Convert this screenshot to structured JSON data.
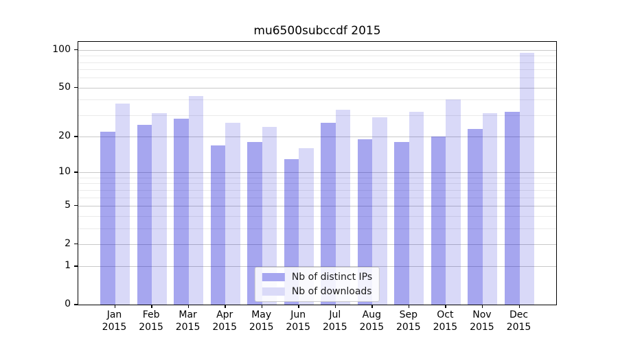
{
  "chart_data": {
    "type": "bar",
    "title": "mu6500subccdf 2015",
    "categories": [
      "Jan",
      "Feb",
      "Mar",
      "Apr",
      "May",
      "Jun",
      "Jul",
      "Aug",
      "Sep",
      "Oct",
      "Nov",
      "Dec"
    ],
    "year_label": "2015",
    "series": [
      {
        "name": "Nb of distinct IPs",
        "solid_color": "#a6a6f0",
        "rgba_color": "rgba(0,0,210,0.35)",
        "values": [
          22,
          25,
          28,
          17,
          18,
          13,
          26,
          19,
          18,
          20,
          23,
          32
        ]
      },
      {
        "name": "Nb of downloads",
        "solid_color": "#dadaf8",
        "rgba_color": "rgba(0,0,210,0.15)",
        "values": [
          37,
          31,
          43,
          26,
          24,
          16,
          33,
          29,
          32,
          40,
          31,
          95
        ]
      }
    ],
    "y_scale": "log1p",
    "ylim": [
      0,
      116
    ],
    "y_major_ticks": [
      0,
      1,
      2,
      5,
      10,
      20,
      50,
      100
    ],
    "y_minor_ticks": [
      3,
      4,
      6,
      7,
      8,
      9,
      30,
      40,
      60,
      70,
      80,
      90
    ],
    "grid": "horizontal",
    "legend_position": "lower center",
    "xlabel": "",
    "ylabel": "",
    "colors": {
      "grid_major": "#c8c8c8",
      "grid_minor": "#eaeaea",
      "spine": "#000000",
      "text": "#000000",
      "background": "#ffffff"
    }
  }
}
